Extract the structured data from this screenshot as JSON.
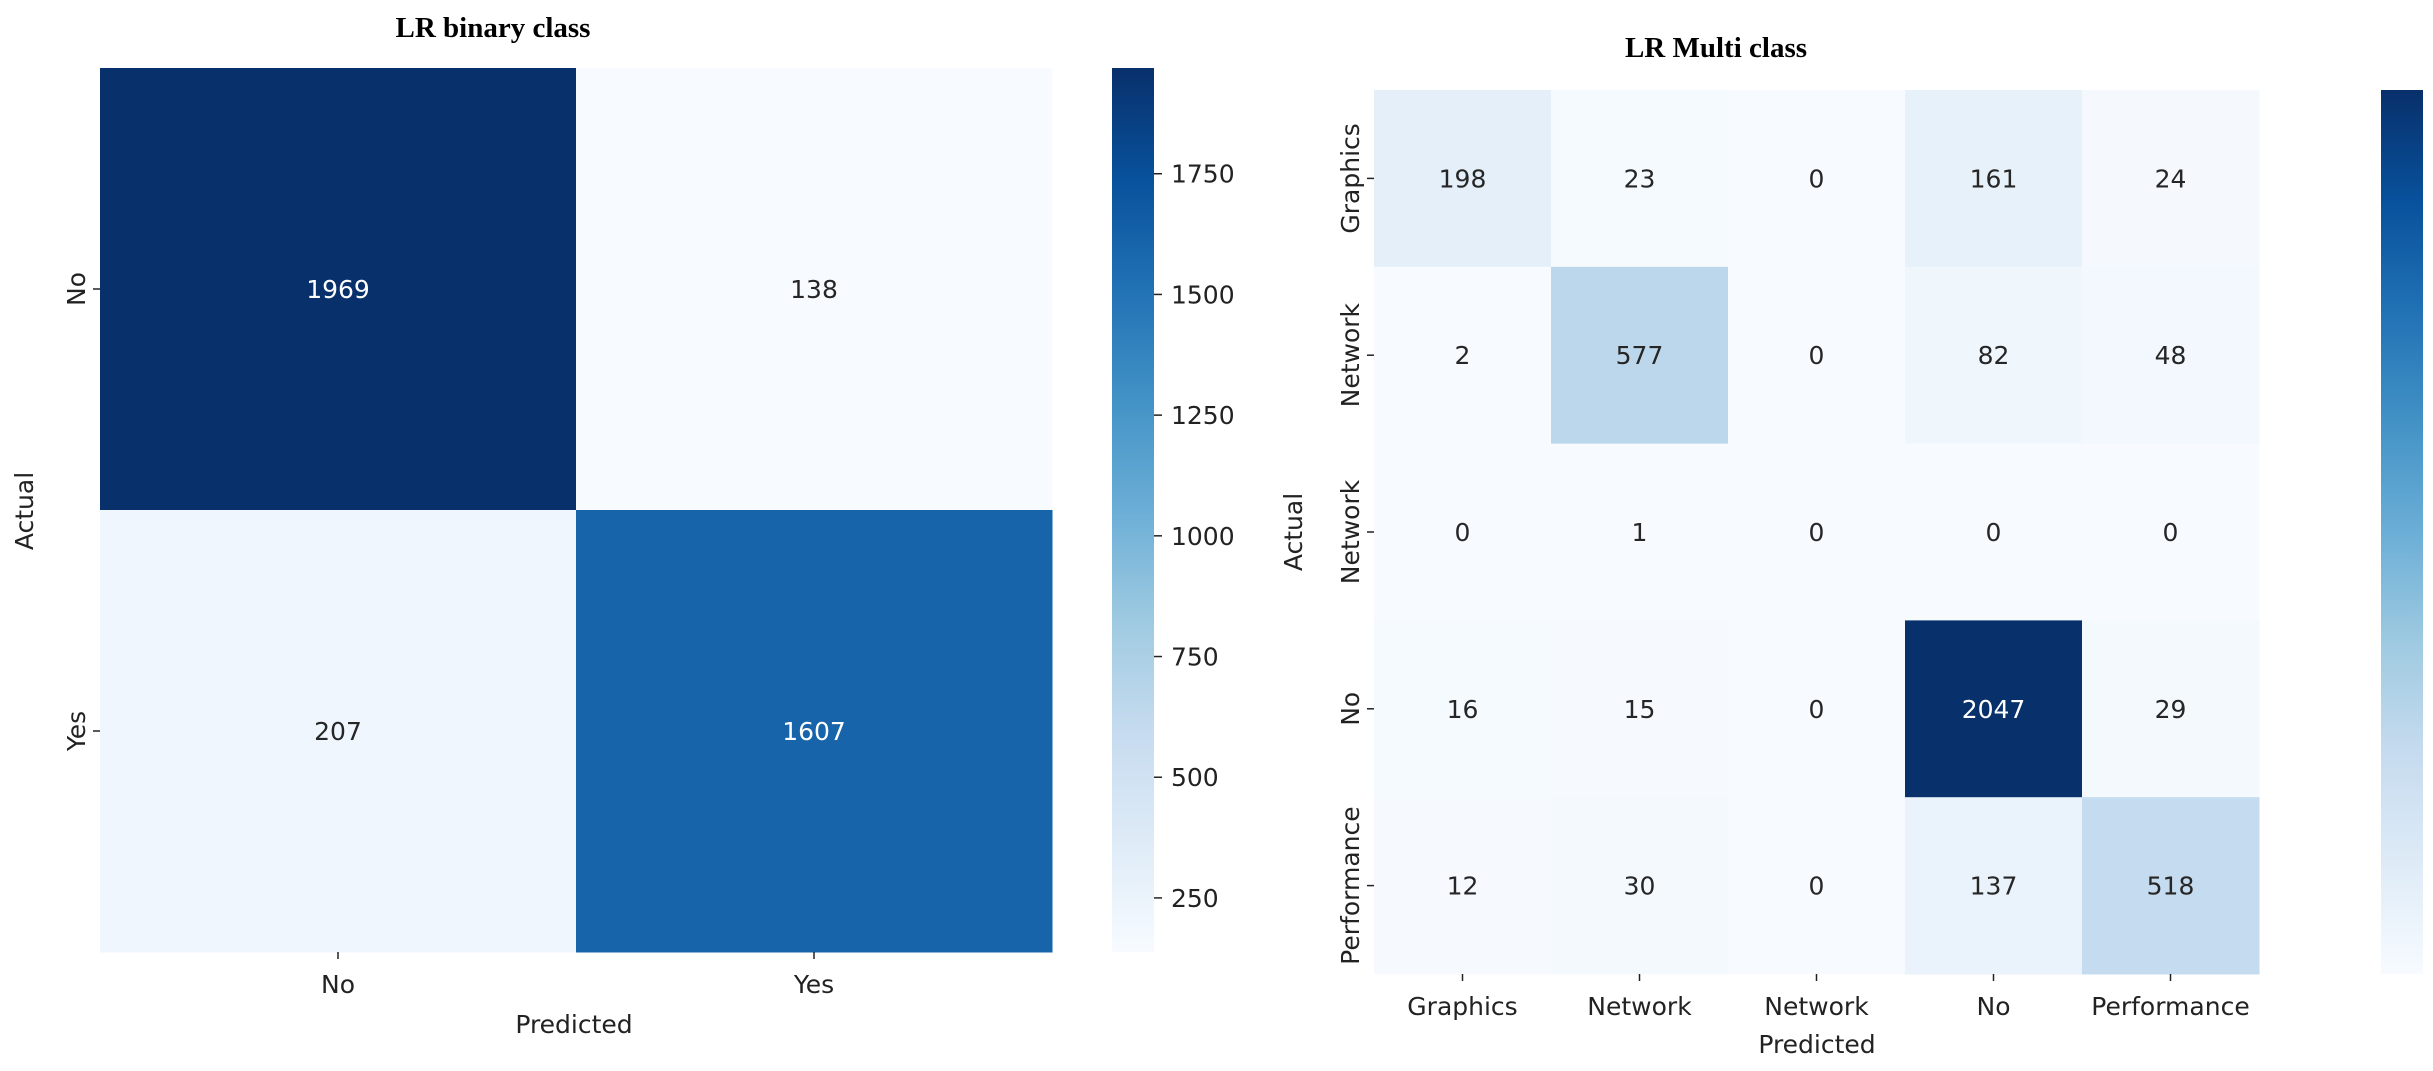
{
  "chart_data": [
    {
      "type": "heatmap",
      "title": "LR binary class",
      "xlabel": "Predicted",
      "ylabel": "Actual",
      "x_categories": [
        "No",
        "Yes"
      ],
      "y_categories": [
        "No",
        "Yes"
      ],
      "values": [
        [
          1969,
          138
        ],
        [
          207,
          1607
        ]
      ],
      "colormap": "Blues",
      "color_range": [
        138,
        1969
      ],
      "colorbar_ticks": [
        "250",
        "500",
        "750",
        "1000",
        "1250",
        "1500",
        "1750"
      ]
    },
    {
      "type": "heatmap",
      "title": "LR Multi class",
      "xlabel": "Predicted",
      "ylabel": "Actual",
      "x_categories": [
        "Graphics",
        "Network",
        "Network",
        "No",
        "Performance"
      ],
      "y_categories": [
        "Graphics",
        "Network",
        "Network",
        "No",
        "Performance"
      ],
      "values": [
        [
          198,
          23,
          0,
          161,
          24
        ],
        [
          2,
          577,
          0,
          82,
          48
        ],
        [
          0,
          1,
          0,
          0,
          0
        ],
        [
          16,
          15,
          0,
          2047,
          29
        ],
        [
          12,
          30,
          0,
          137,
          518
        ]
      ],
      "colormap": "Blues",
      "color_range": [
        0,
        2047
      ],
      "colorbar_ticks": []
    }
  ]
}
